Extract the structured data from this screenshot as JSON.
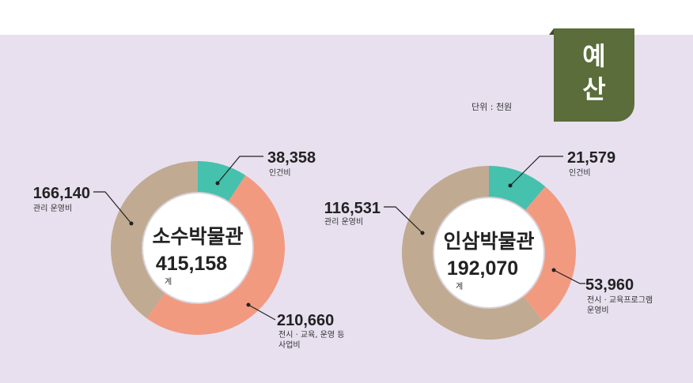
{
  "badge": {
    "line1": "예",
    "line2": "산"
  },
  "unit_note": "단위 : 천원",
  "colors": {
    "personnel": "#45c1ad",
    "program": "#f29a80",
    "management": "#c0aa91",
    "panel": "#e8e0ef",
    "badge": "#5a6d3a"
  },
  "chart_data": [
    {
      "type": "pie",
      "title": "소수박물관",
      "total_value": "415,158",
      "total_label": "계",
      "slices": [
        {
          "value": 38358,
          "value_label": "38,358",
          "label_lines": [
            "인건비"
          ],
          "color": "#45c1ad"
        },
        {
          "value": 210660,
          "value_label": "210,660",
          "label_lines": [
            "전시 · 교육, 운영 등",
            "사업비"
          ],
          "color": "#f29a80"
        },
        {
          "value": 166140,
          "value_label": "166,140",
          "label_lines": [
            "관리 운영비"
          ],
          "color": "#c0aa91"
        }
      ]
    },
    {
      "type": "pie",
      "title": "인삼박물관",
      "total_value": "192,070",
      "total_label": "계",
      "slices": [
        {
          "value": 21579,
          "value_label": "21,579",
          "label_lines": [
            "인건비"
          ],
          "color": "#45c1ad"
        },
        {
          "value": 53960,
          "value_label": "53,960",
          "label_lines": [
            "전시 · 교육프로그램",
            "운영비"
          ],
          "color": "#f29a80"
        },
        {
          "value": 116531,
          "value_label": "116,531",
          "label_lines": [
            "관리 운영비"
          ],
          "color": "#c0aa91"
        }
      ]
    }
  ]
}
